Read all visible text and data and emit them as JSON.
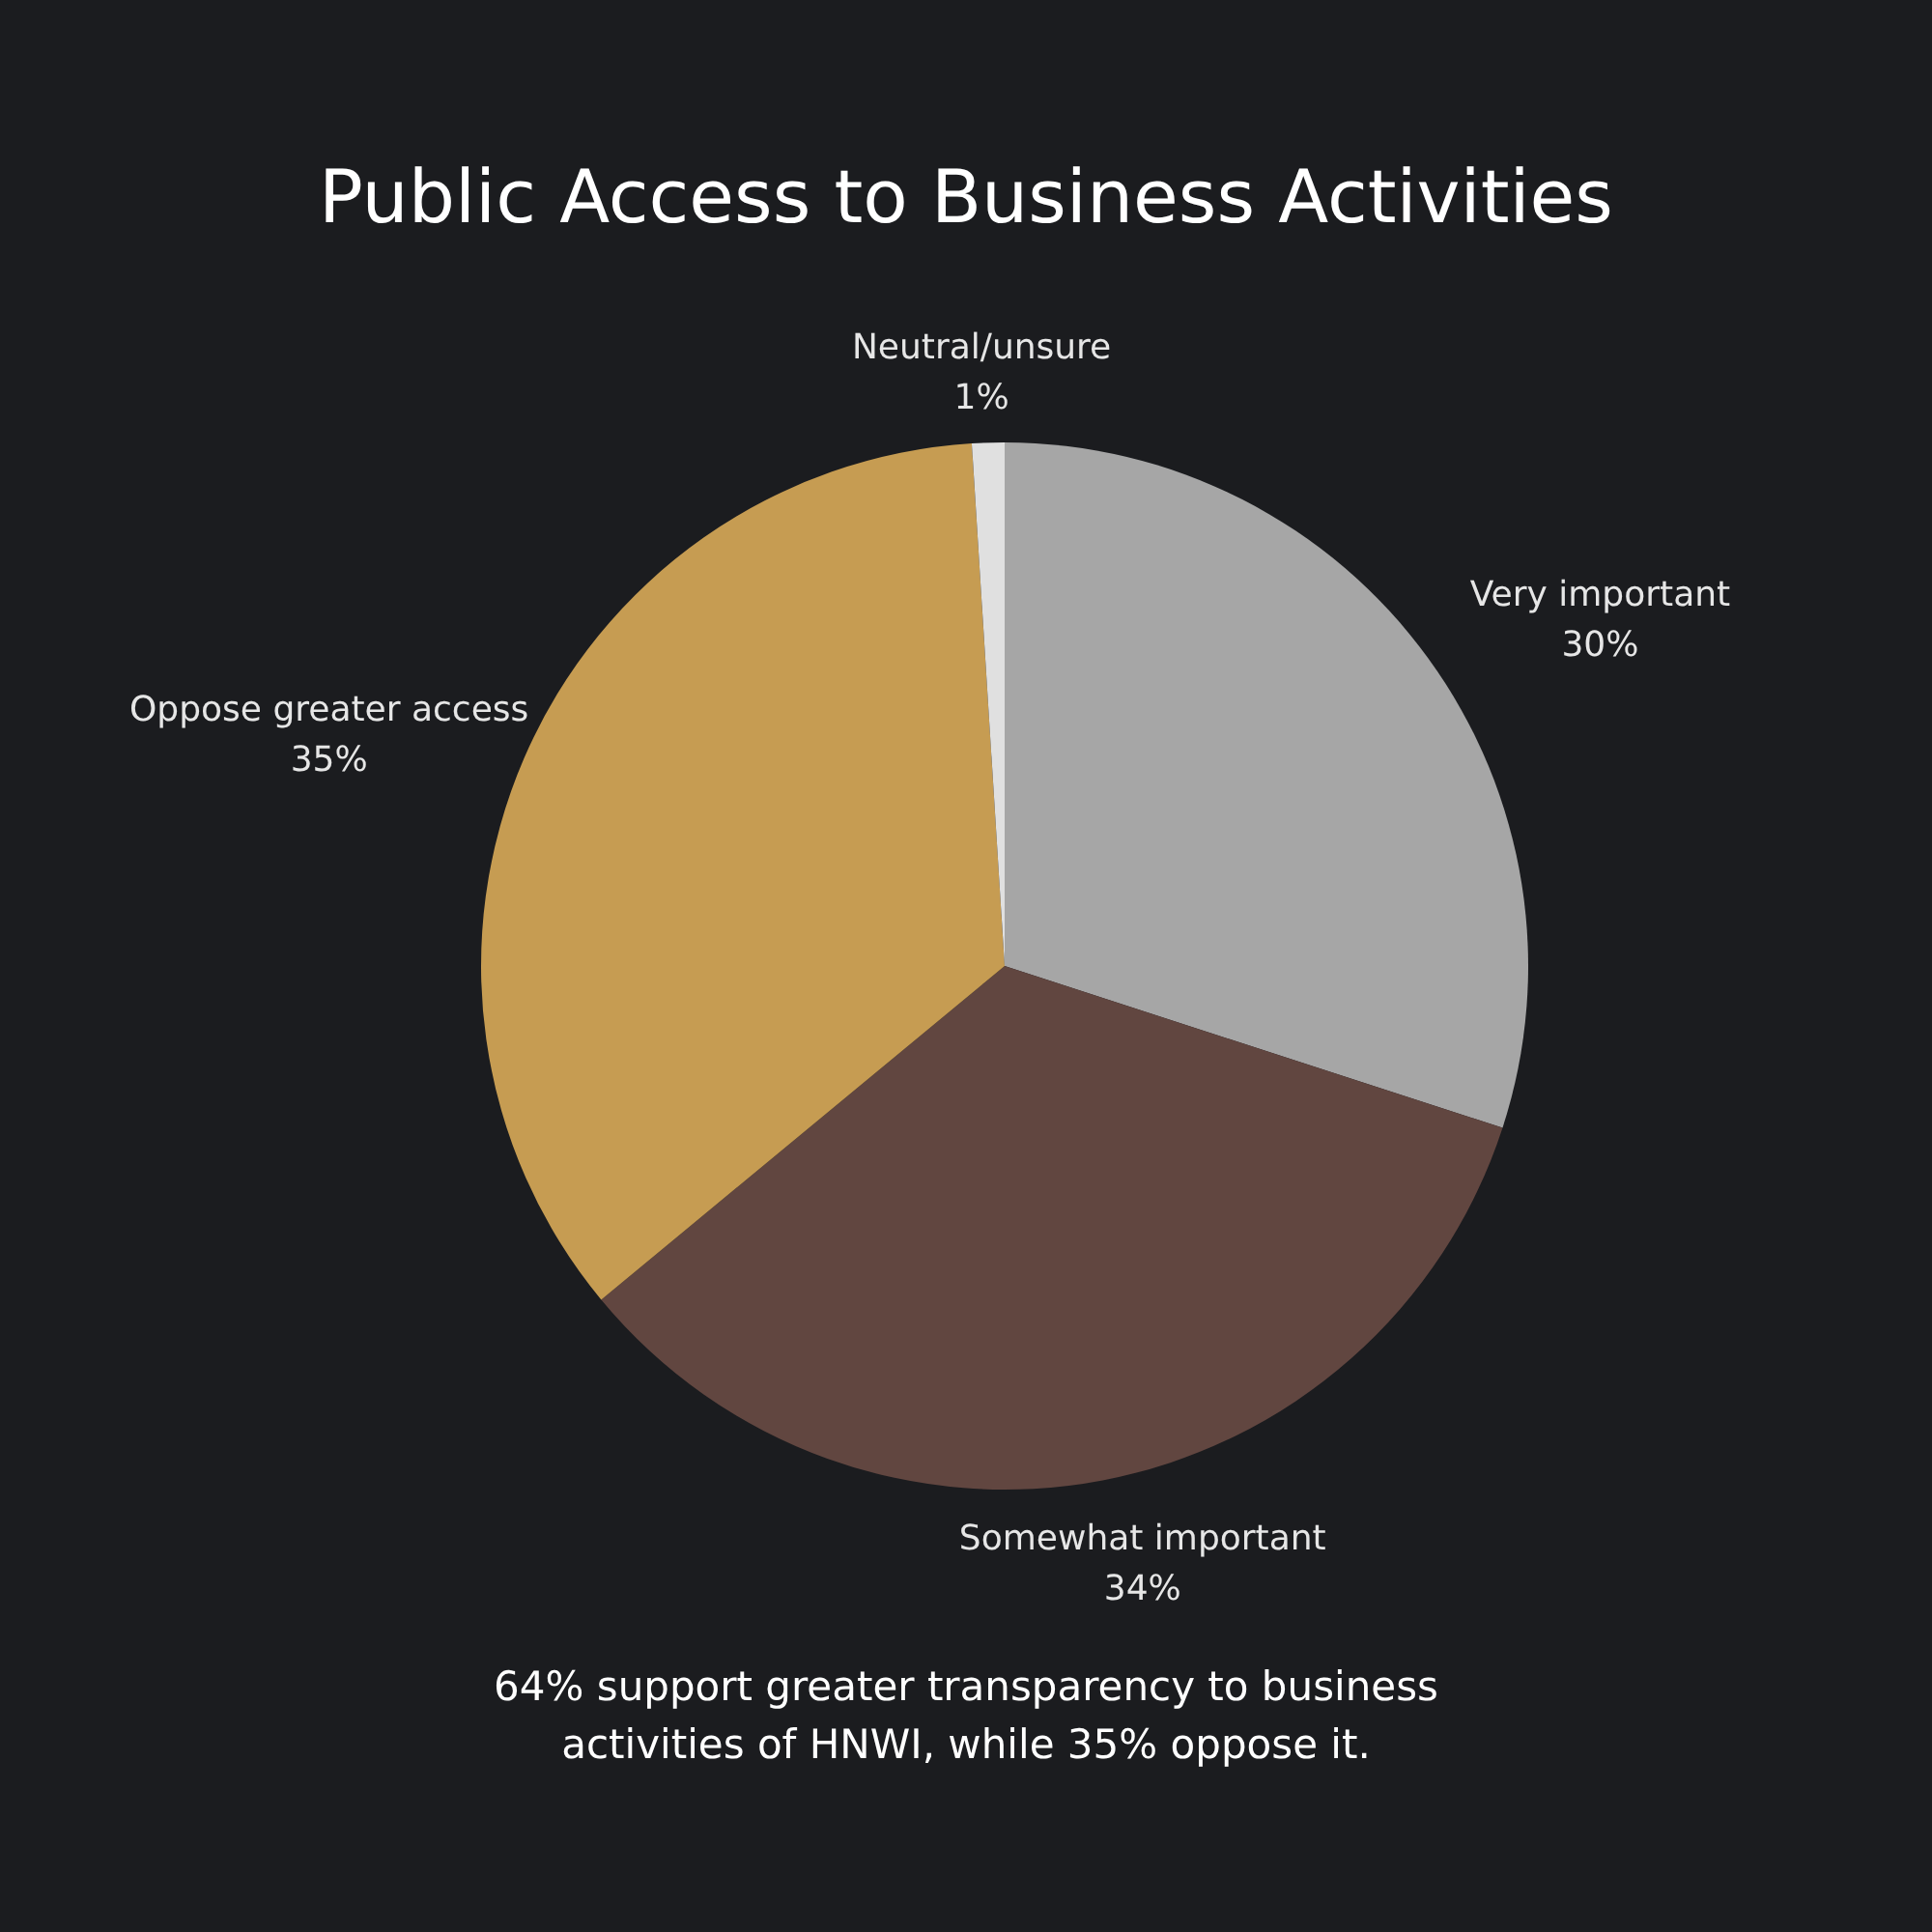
{
  "chart_data": {
    "type": "pie",
    "title": "Public Access to Business Activities",
    "categories": [
      "Very important",
      "Somewhat important",
      "Oppose greater access",
      "Neutral/unsure"
    ],
    "values": [
      30,
      34,
      35,
      1
    ],
    "value_labels": [
      "30%",
      "34%",
      "35%",
      "1%"
    ],
    "colors": [
      "#a6a6a6",
      "#614640",
      "#c69c52",
      "#e0e0e0"
    ],
    "annotations": [
      "64% support greater transparency to business activities of HNWI, while 35% oppose it."
    ]
  }
}
